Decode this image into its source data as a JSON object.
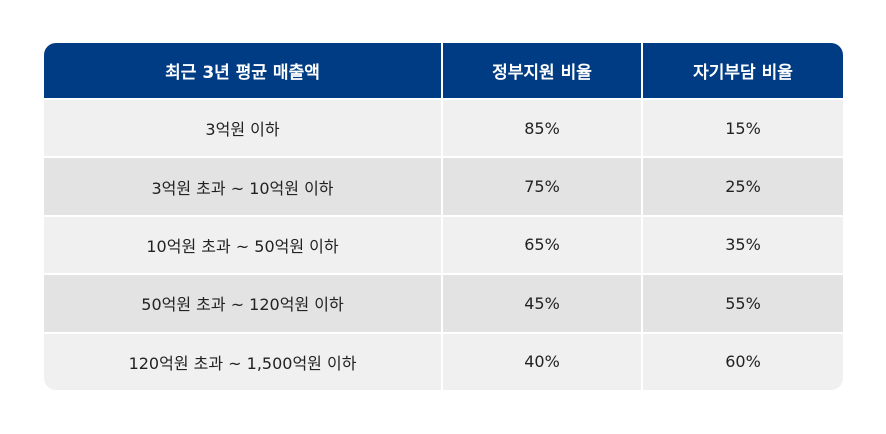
{
  "table": {
    "headers": [
      "최근 3년 평균 매출액",
      "정부지원 비율",
      "자기부담 비율"
    ],
    "rows": [
      [
        "3억원 이하",
        "85%",
        "15%"
      ],
      [
        "3억원 초과 ~ 10억원 이하",
        "75%",
        "25%"
      ],
      [
        "10억원 초과 ~ 50억원 이하",
        "65%",
        "35%"
      ],
      [
        "50억원 초과 ~ 120억원 이하",
        "45%",
        "55%"
      ],
      [
        "120억원 초과 ~ 1,500억원 이하",
        "40%",
        "60%"
      ]
    ]
  },
  "colors": {
    "header_bg": "#003c84",
    "row_light": "#f0f0f0",
    "row_dark": "#e3e3e3"
  }
}
